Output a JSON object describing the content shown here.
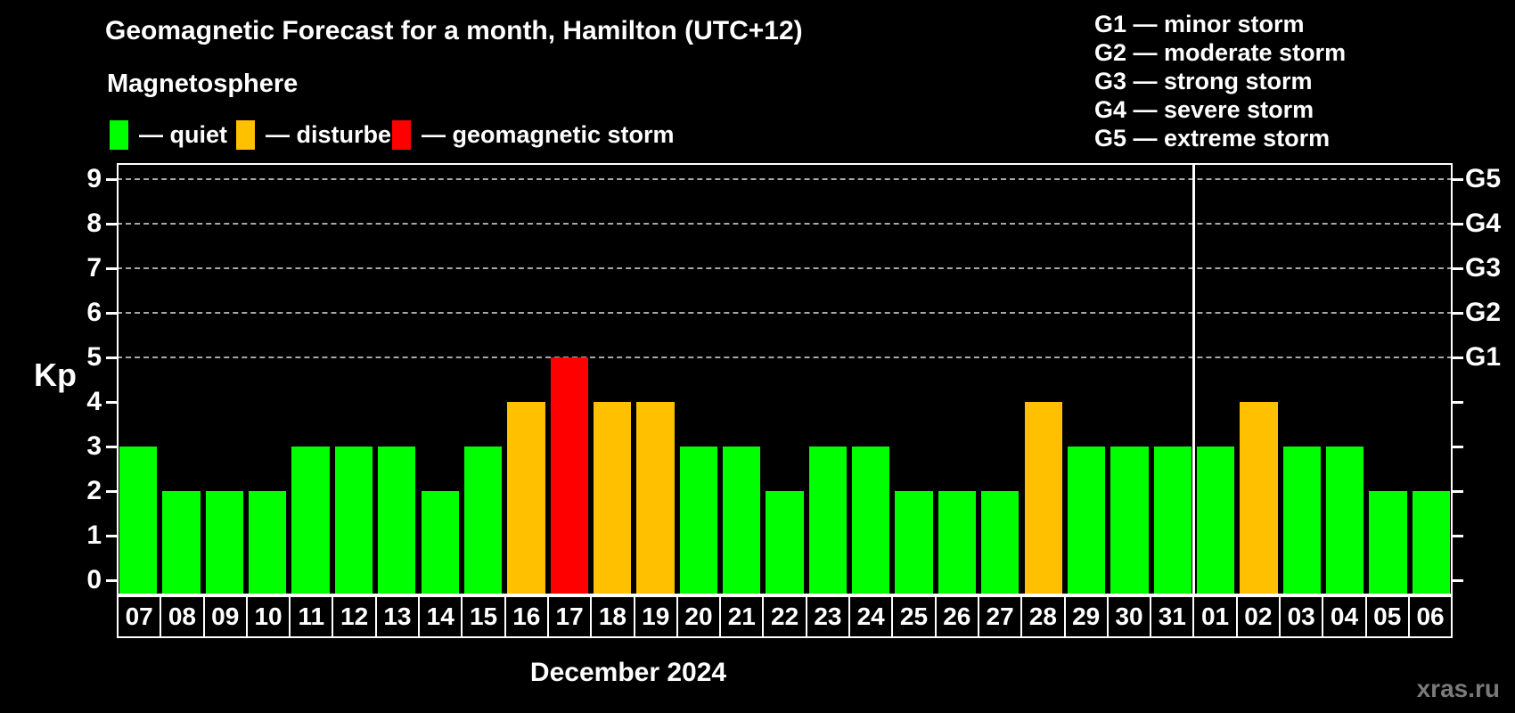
{
  "header": {
    "title": "Geomagnetic Forecast for a month, Hamilton (UTC+12)",
    "subtitle": "Magnetosphere"
  },
  "legend": {
    "items": [
      {
        "key": "quiet",
        "label": "— quiet",
        "color": "#00ff00"
      },
      {
        "key": "disturbed",
        "label": "— disturbed",
        "color": "#ffc000"
      },
      {
        "key": "storm",
        "label": "— geomagnetic storm",
        "color": "#ff0000"
      }
    ]
  },
  "g_scale_legend": {
    "lines": [
      "G1 — minor storm",
      "G2 — moderate storm",
      "G3 — strong storm",
      "G4 — severe storm",
      "G5 — extreme storm"
    ]
  },
  "watermark": "xras.ru",
  "chart_data": {
    "type": "bar",
    "title": "Geomagnetic Forecast for a month, Hamilton (UTC+12)",
    "subtitle": "Magnetosphere",
    "xlabel": "December 2024",
    "ylabel": "Kp",
    "ylim": [
      -0.34,
      9.36
    ],
    "yticks": [
      0,
      1,
      2,
      3,
      4,
      5,
      6,
      7,
      8,
      9
    ],
    "gridlines_at": [
      5,
      6,
      7,
      8,
      9
    ],
    "grid": "dashed horizontal at Kp 5-9",
    "right_axis_labels": [
      {
        "value": 5,
        "label": "G1"
      },
      {
        "value": 6,
        "label": "G2"
      },
      {
        "value": 7,
        "label": "G3"
      },
      {
        "value": 8,
        "label": "G4"
      },
      {
        "value": 9,
        "label": "G5"
      }
    ],
    "categories": [
      "07",
      "08",
      "09",
      "10",
      "11",
      "12",
      "13",
      "14",
      "15",
      "16",
      "17",
      "18",
      "19",
      "20",
      "21",
      "22",
      "23",
      "24",
      "25",
      "26",
      "27",
      "28",
      "29",
      "30",
      "31",
      "01",
      "02",
      "03",
      "04",
      "05",
      "06"
    ],
    "values": [
      3,
      2,
      2,
      2,
      3,
      3,
      3,
      2,
      3,
      4,
      5,
      4,
      4,
      3,
      3,
      2,
      3,
      3,
      2,
      2,
      2,
      4,
      3,
      3,
      3,
      3,
      4,
      3,
      3,
      2,
      2
    ],
    "statuses": [
      "quiet",
      "quiet",
      "quiet",
      "quiet",
      "quiet",
      "quiet",
      "quiet",
      "quiet",
      "quiet",
      "disturbed",
      "storm",
      "disturbed",
      "disturbed",
      "quiet",
      "quiet",
      "quiet",
      "quiet",
      "quiet",
      "quiet",
      "quiet",
      "quiet",
      "disturbed",
      "quiet",
      "quiet",
      "quiet",
      "quiet",
      "disturbed",
      "quiet",
      "quiet",
      "quiet",
      "quiet"
    ],
    "month_separator_after_index": 24,
    "colors": {
      "quiet": "#00ff00",
      "disturbed": "#ffc000",
      "storm": "#ff0000",
      "gridline": "#a8a8a8",
      "axis": "#ffffff",
      "background": "#000000"
    }
  }
}
